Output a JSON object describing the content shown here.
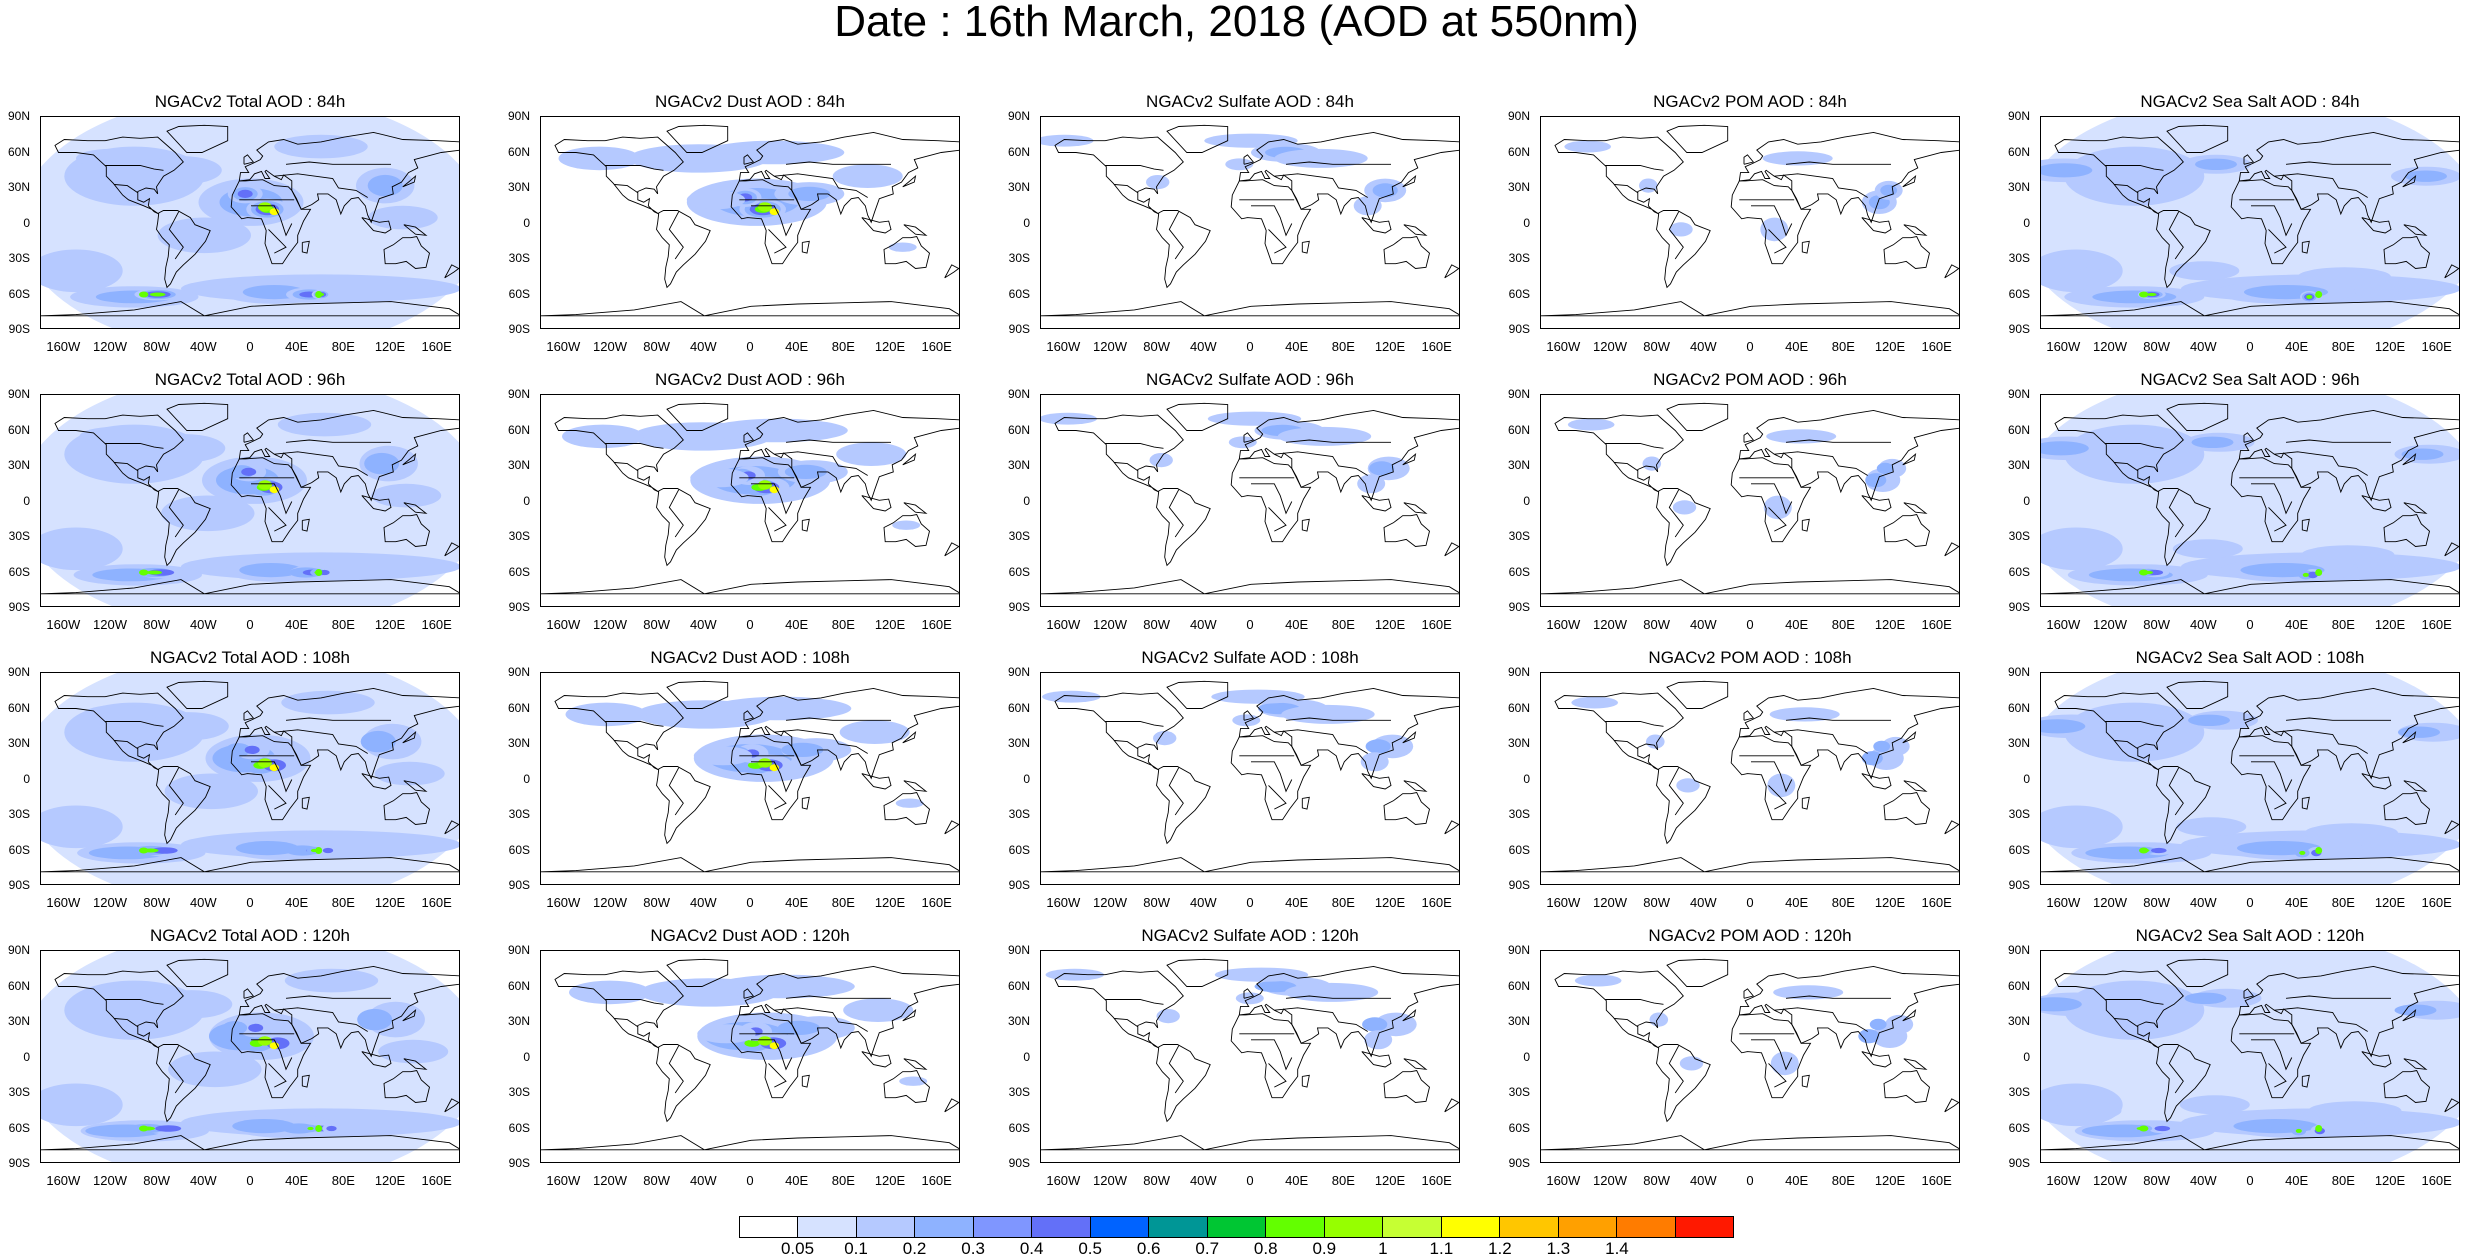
{
  "title": "Date : 16th March, 2018 (AOD at 550nm)",
  "lat_labels": [
    "90N",
    "60N",
    "30N",
    "0",
    "30S",
    "60S",
    "90S"
  ],
  "lon_labels": [
    "160W",
    "120W",
    "80W",
    "40W",
    "0",
    "40E",
    "80E",
    "120E",
    "160E"
  ],
  "panels": [
    {
      "title": "NGACv2 Total AOD : 84h",
      "field": "total"
    },
    {
      "title": "NGACv2 Dust AOD : 84h",
      "field": "dust"
    },
    {
      "title": "NGACv2 Sulfate AOD : 84h",
      "field": "sulfate"
    },
    {
      "title": "NGACv2 POM AOD : 84h",
      "field": "pom"
    },
    {
      "title": "NGACv2 Sea Salt AOD : 84h",
      "field": "seasalt"
    },
    {
      "title": "NGACv2 Total AOD : 96h",
      "field": "total"
    },
    {
      "title": "NGACv2 Dust AOD : 96h",
      "field": "dust"
    },
    {
      "title": "NGACv2 Sulfate AOD : 96h",
      "field": "sulfate"
    },
    {
      "title": "NGACv2 POM AOD : 96h",
      "field": "pom"
    },
    {
      "title": "NGACv2 Sea Salt AOD : 96h",
      "field": "seasalt"
    },
    {
      "title": "NGACv2 Total AOD : 108h",
      "field": "total"
    },
    {
      "title": "NGACv2 Dust AOD : 108h",
      "field": "dust"
    },
    {
      "title": "NGACv2 Sulfate AOD : 108h",
      "field": "sulfate"
    },
    {
      "title": "NGACv2 POM AOD : 108h",
      "field": "pom"
    },
    {
      "title": "NGACv2 Sea Salt AOD : 108h",
      "field": "seasalt"
    },
    {
      "title": "NGACv2 Total AOD : 120h",
      "field": "total"
    },
    {
      "title": "NGACv2 Dust AOD : 120h",
      "field": "dust"
    },
    {
      "title": "NGACv2 Sulfate AOD : 120h",
      "field": "sulfate"
    },
    {
      "title": "NGACv2 POM AOD : 120h",
      "field": "pom"
    },
    {
      "title": "NGACv2 Sea Salt  AOD : 120h",
      "field": "seasalt"
    }
  ],
  "colorbar": {
    "labels": [
      "0.05",
      "0.1",
      "0.2",
      "0.3",
      "0.4",
      "0.5",
      "0.6",
      "0.7",
      "0.8",
      "0.9",
      "1",
      "1.1",
      "1.2",
      "1.3",
      "1.4"
    ],
    "colors": [
      "#ffffff",
      "#d6e2ff",
      "#b5c9ff",
      "#8eb2ff",
      "#7f96ff",
      "#6370f8",
      "#0063ff",
      "#009696",
      "#00c633",
      "#63ff00",
      "#96ff00",
      "#c6ff33",
      "#ffff00",
      "#ffc600",
      "#ffa000",
      "#ff7c00",
      "#ff1900"
    ]
  }
}
